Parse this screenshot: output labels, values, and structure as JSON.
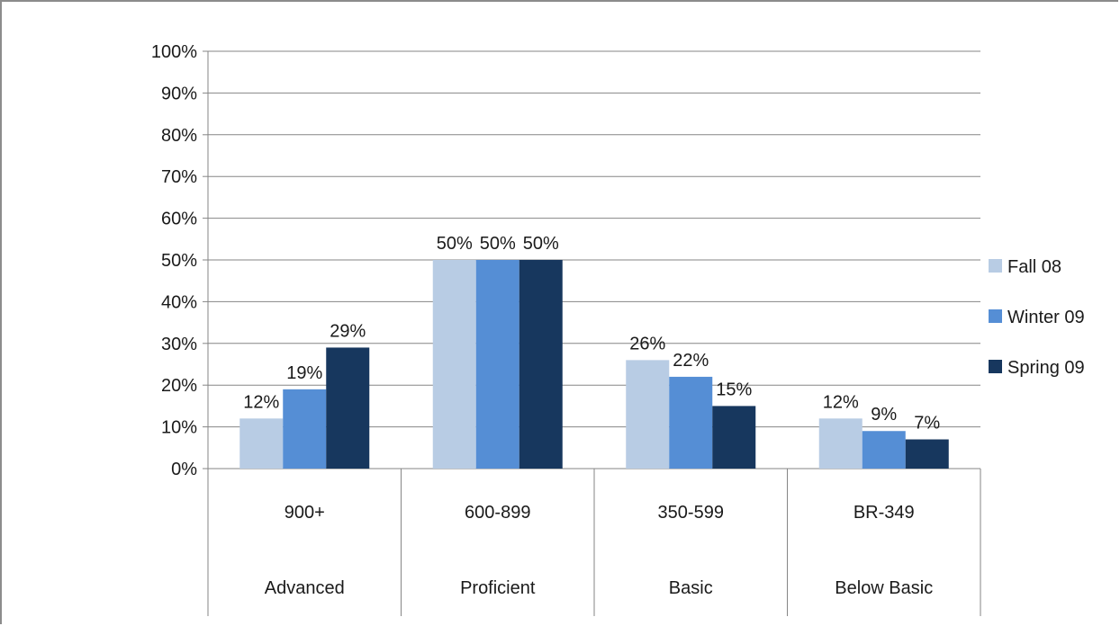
{
  "chart_data": {
    "type": "bar",
    "title": "",
    "xlabel": "",
    "ylabel": "",
    "ylim": [
      0,
      100
    ],
    "yticks": [
      "0%",
      "10%",
      "20%",
      "30%",
      "40%",
      "50%",
      "60%",
      "70%",
      "80%",
      "90%",
      "100%"
    ],
    "categories": [
      "900+",
      "600-899",
      "350-599",
      "BR-349"
    ],
    "category_groups": [
      "Advanced",
      "Proficient",
      "Basic",
      "Below Basic"
    ],
    "series": [
      {
        "name": "Fall 08",
        "color": "#b8cce4",
        "values": [
          12,
          50,
          26,
          12
        ],
        "labels": [
          "12%",
          "50%",
          "26%",
          "12%"
        ]
      },
      {
        "name": "Winter 09",
        "color": "#558ed5",
        "values": [
          19,
          50,
          22,
          9
        ],
        "labels": [
          "19%",
          "50%",
          "22%",
          "9%"
        ]
      },
      {
        "name": "Spring 09",
        "color": "#17375e",
        "values": [
          29,
          50,
          15,
          7
        ],
        "labels": [
          "29%",
          "50%",
          "15%",
          "7%"
        ]
      }
    ],
    "grid": true,
    "legend": "right"
  }
}
